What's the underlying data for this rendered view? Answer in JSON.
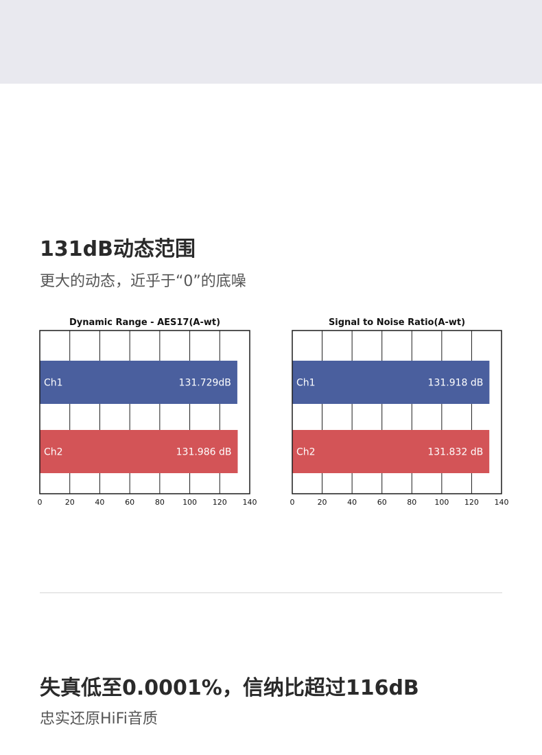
{
  "header": {
    "title": "131dB动态范围",
    "subtitle": "更大的动态，近乎于“0”的底噪"
  },
  "footer": {
    "title": "失真低至0.0001%，信纳比超过116dB",
    "subtitle": "忠实还原HiFi音质"
  },
  "colors": {
    "ch1": "#4a5f9e",
    "ch2": "#d35457",
    "grid": "#1a1a1a"
  },
  "chart_data": [
    {
      "type": "bar",
      "orientation": "horizontal",
      "title": "Dynamic Range - AES17(A-wt)",
      "categories": [
        "Ch1",
        "Ch2"
      ],
      "values": [
        131.729,
        131.986
      ],
      "value_labels": [
        "131.729dB",
        "131.986 dB"
      ],
      "xlim": [
        0,
        140
      ],
      "xticks": [
        0,
        20,
        40,
        60,
        80,
        100,
        120,
        140
      ],
      "grid": true
    },
    {
      "type": "bar",
      "orientation": "horizontal",
      "title": "Signal to Noise Ratio(A-wt)",
      "categories": [
        "Ch1",
        "Ch2"
      ],
      "values": [
        131.918,
        131.832
      ],
      "value_labels": [
        "131.918 dB",
        "131.832 dB"
      ],
      "xlim": [
        0,
        140
      ],
      "xticks": [
        0,
        20,
        40,
        60,
        80,
        100,
        120,
        140
      ],
      "grid": true
    }
  ]
}
